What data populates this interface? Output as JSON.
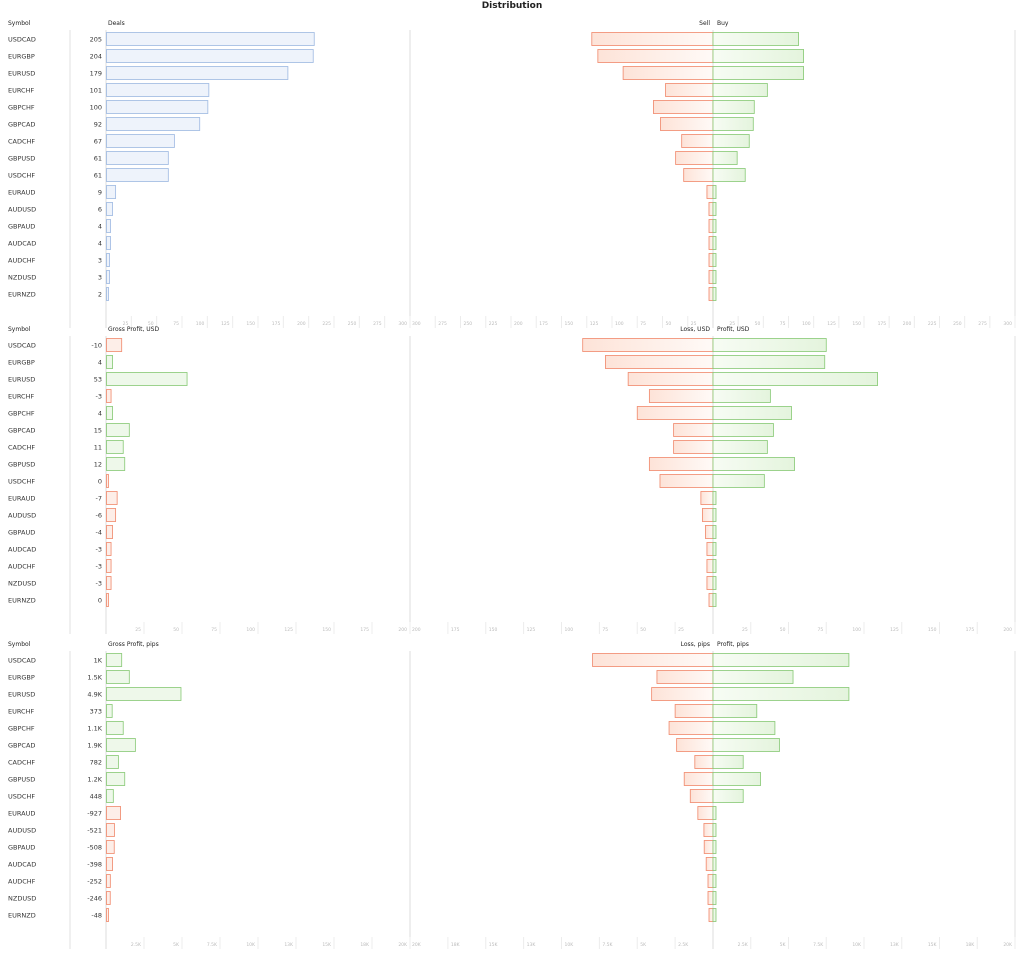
{
  "title": "Distribution",
  "colors": {
    "deals_fill": "#eef3fb",
    "deals_stroke": "#9db8e2",
    "positive_fill": "#eef8ea",
    "positive_stroke": "#86c873",
    "negative_fill": "#fdeee8",
    "negative_stroke": "#f0876a",
    "grid": "#e6e6e6"
  },
  "chart_data": [
    {
      "type": "bar",
      "symbol_header": "Symbol",
      "left_title": "Deals",
      "right_left_title": "Sell",
      "right_right_title": "Buy",
      "categories": [
        "USDCAD",
        "EURGBP",
        "EURUSD",
        "EURCHF",
        "GBPCHF",
        "GBPCAD",
        "CADCHF",
        "GBPUSD",
        "USDCHF",
        "EURAUD",
        "AUDUSD",
        "GBPAUD",
        "AUDCAD",
        "AUDCHF",
        "NZDUSD",
        "EURNZD"
      ],
      "left_values": [
        205,
        204,
        179,
        101,
        100,
        92,
        67,
        61,
        61,
        9,
        6,
        4,
        4,
        3,
        3,
        2
      ],
      "left_labels": [
        "205",
        "204",
        "179",
        "101",
        "100",
        "92",
        "67",
        "61",
        "61",
        "9",
        "6",
        "4",
        "4",
        "3",
        "3",
        "2"
      ],
      "left_style": "deals",
      "right_left_values": [
        120,
        114,
        89,
        47,
        59,
        52,
        31,
        37,
        29,
        6,
        4,
        3,
        3,
        2,
        2,
        1
      ],
      "right_right_values": [
        85,
        90,
        90,
        54,
        41,
        40,
        36,
        24,
        32,
        3,
        2,
        1,
        1,
        1,
        1,
        1
      ],
      "xlim": [
        0,
        300
      ],
      "tick_labels": [
        "25",
        "50",
        "75",
        "100",
        "125",
        "150",
        "175",
        "200",
        "225",
        "250",
        "275",
        "300"
      ],
      "grid": true
    },
    {
      "type": "bar",
      "symbol_header": "Symbol",
      "left_title": "Gross Profit, USD",
      "right_left_title": "Loss, USD",
      "right_right_title": "Profit, USD",
      "categories": [
        "USDCAD",
        "EURGBP",
        "EURUSD",
        "EURCHF",
        "GBPCHF",
        "GBPCAD",
        "CADCHF",
        "GBPUSD",
        "USDCHF",
        "EURAUD",
        "AUDUSD",
        "GBPAUD",
        "AUDCAD",
        "AUDCHF",
        "NZDUSD",
        "EURNZD"
      ],
      "left_values": [
        -10,
        4,
        53,
        -3,
        4,
        15,
        11,
        12,
        0,
        -7,
        -6,
        -4,
        -3,
        -3,
        -3,
        0
      ],
      "left_labels": [
        "-10",
        "4",
        "53",
        "-3",
        "4",
        "15",
        "11",
        "12",
        "0",
        "-7",
        "-6",
        "-4",
        "-3",
        "-3",
        "-3",
        "0"
      ],
      "left_style": "signed",
      "right_left_values": [
        86,
        71,
        56,
        42,
        50,
        26,
        26,
        42,
        35,
        8,
        7,
        5,
        4,
        4,
        4,
        2
      ],
      "right_right_values": [
        75,
        74,
        109,
        38,
        52,
        40,
        36,
        54,
        34,
        1,
        1,
        1,
        1,
        1,
        1,
        2
      ],
      "xlim": [
        0,
        200
      ],
      "tick_labels": [
        "25",
        "50",
        "75",
        "100",
        "125",
        "150",
        "175",
        "200"
      ],
      "grid": true
    },
    {
      "type": "bar",
      "symbol_header": "Symbol",
      "left_title": "Gross Profit, pips",
      "right_left_title": "Loss, pips",
      "right_right_title": "Profit, pips",
      "categories": [
        "USDCAD",
        "EURGBP",
        "EURUSD",
        "EURCHF",
        "GBPCHF",
        "GBPCAD",
        "CADCHF",
        "GBPUSD",
        "USDCHF",
        "EURAUD",
        "AUDUSD",
        "GBPAUD",
        "AUDCAD",
        "AUDCHF",
        "NZDUSD",
        "EURNZD"
      ],
      "left_values": [
        1000,
        1500,
        4900,
        373,
        1100,
        1900,
        782,
        1200,
        448,
        -927,
        -521,
        -508,
        -398,
        -252,
        -246,
        -48
      ],
      "left_labels": [
        "1K",
        "1.5K",
        "4.9K",
        "373",
        "1.1K",
        "1.9K",
        "782",
        "1.2K",
        "448",
        "-927",
        "-521",
        "-508",
        "-398",
        "-252",
        "-246",
        "-48"
      ],
      "left_style": "signed",
      "right_left_values": [
        7950,
        3700,
        4050,
        2500,
        2900,
        2400,
        1200,
        1900,
        1500,
        1000,
        600,
        580,
        450,
        330,
        330,
        180
      ],
      "right_right_values": [
        9000,
        5300,
        9000,
        2900,
        4100,
        4400,
        2000,
        3150,
        2000,
        80,
        80,
        70,
        60,
        80,
        80,
        130
      ],
      "xlim": [
        0,
        20000
      ],
      "tick_labels": [
        "2.5K",
        "5K",
        "7.5K",
        "10K",
        "13K",
        "15K",
        "18K",
        "20K"
      ],
      "grid": true
    }
  ]
}
